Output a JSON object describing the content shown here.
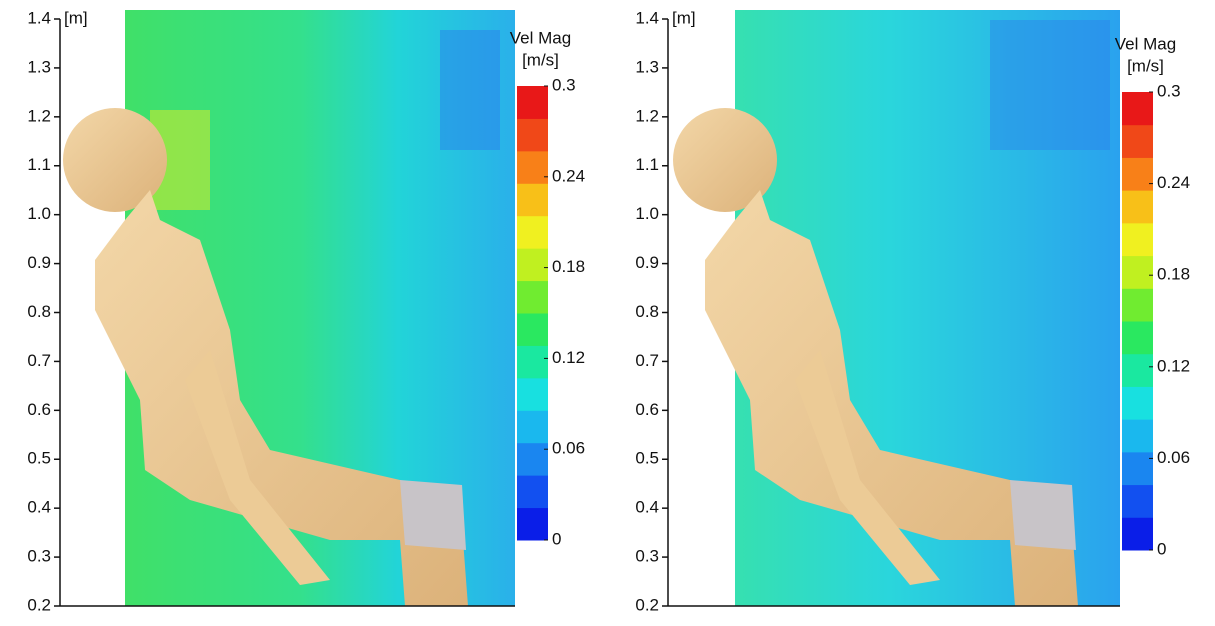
{
  "chart_data": [
    {
      "type": "contour",
      "y_unit": "[m]",
      "ylim": [
        0.2,
        1.4
      ],
      "yticks": [
        0.2,
        0.3,
        0.4,
        0.5,
        0.6,
        0.7,
        0.8,
        0.9,
        {
          "value": 1,
          "label": "1.0"
        },
        1.1,
        1.2,
        1.3,
        1.4
      ],
      "colorbar": {
        "title": "Vel Mag",
        "unit": "[m/s]",
        "lim": [
          0,
          0.3
        ],
        "ticks": [
          0,
          0.06,
          0.12,
          0.18,
          0.24,
          0.3
        ],
        "colors": [
          "#0a1ee8",
          "#1250f0",
          "#1a86f0",
          "#1ab8ee",
          "#18e0e0",
          "#1ae8a0",
          "#2ae860",
          "#70ec30",
          "#c0f020",
          "#f0f020",
          "#f8c018",
          "#f88018",
          "#f04818",
          "#e81818"
        ]
      }
    },
    {
      "type": "contour",
      "y_unit": "[m]",
      "ylim": [
        0.2,
        1.4
      ],
      "yticks": [
        0.2,
        0.3,
        0.4,
        0.5,
        0.6,
        0.7,
        0.8,
        0.9,
        {
          "value": 1,
          "label": "1.0"
        },
        1.1,
        1.2,
        1.3,
        1.4
      ],
      "colorbar": {
        "title": "Vel Mag",
        "unit": "[m/s]",
        "lim": [
          0,
          0.3
        ],
        "ticks": [
          0,
          0.06,
          0.12,
          0.18,
          0.24,
          0.3
        ],
        "colors": [
          "#0a1ee8",
          "#1250f0",
          "#1a86f0",
          "#1ab8ee",
          "#18e0e0",
          "#1ae8a0",
          "#2ae860",
          "#70ec30",
          "#c0f020",
          "#f0f020",
          "#f8c018",
          "#f88018",
          "#f04818",
          "#e81818"
        ]
      }
    }
  ]
}
